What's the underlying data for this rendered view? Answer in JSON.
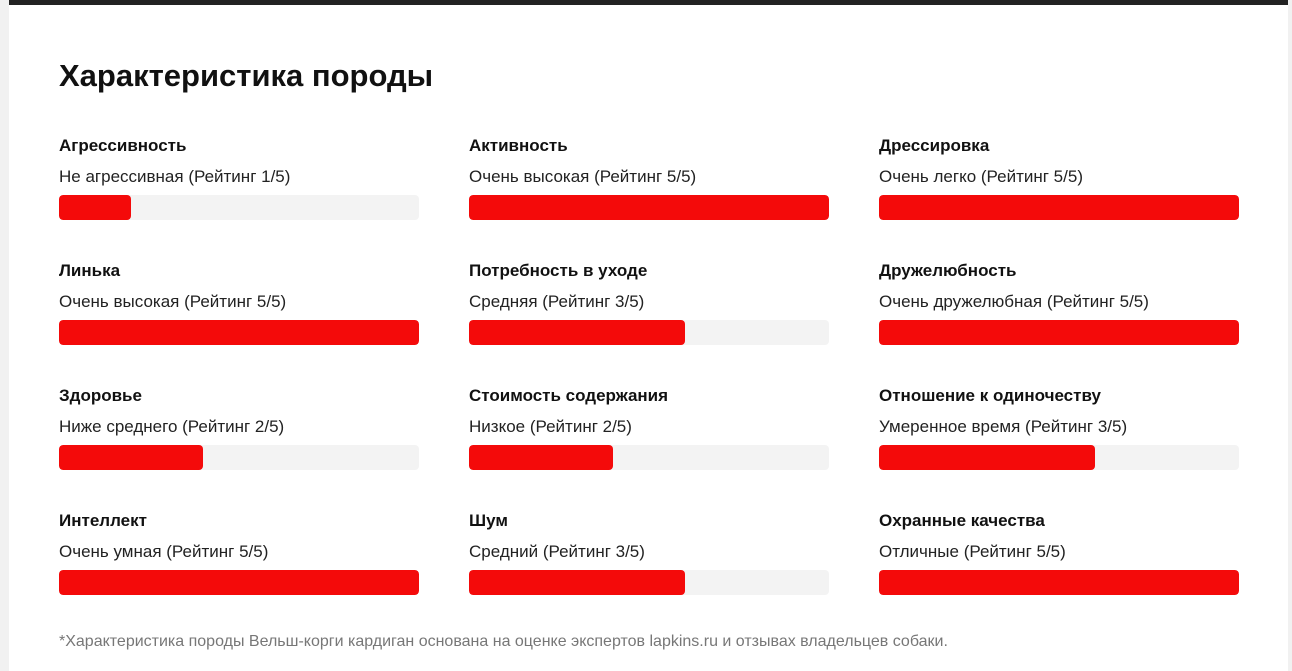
{
  "title": "Характеристика породы",
  "accent_color": "#f40a0a",
  "track_color": "#f3f3f3",
  "characteristics": [
    {
      "name": "Агрессивность",
      "value": "Не агрессивная (Рейтинг 1/5)",
      "rating": 1,
      "max": 5,
      "fill_fraction": 0.2
    },
    {
      "name": "Активность",
      "value": "Очень высокая (Рейтинг 5/5)",
      "rating": 5,
      "max": 5,
      "fill_fraction": 1.0
    },
    {
      "name": "Дрессировка",
      "value": "Очень легко (Рейтинг 5/5)",
      "rating": 5,
      "max": 5,
      "fill_fraction": 1.0
    },
    {
      "name": "Линька",
      "value": "Очень высокая (Рейтинг 5/5)",
      "rating": 5,
      "max": 5,
      "fill_fraction": 1.0
    },
    {
      "name": "Потребность в уходе",
      "value": "Средняя (Рейтинг 3/5)",
      "rating": 3,
      "max": 5,
      "fill_fraction": 0.6
    },
    {
      "name": "Дружелюбность",
      "value": "Очень дружелюбная (Рейтинг 5/5)",
      "rating": 5,
      "max": 5,
      "fill_fraction": 1.0
    },
    {
      "name": "Здоровье",
      "value": "Ниже среднего (Рейтинг 2/5)",
      "rating": 2,
      "max": 5,
      "fill_fraction": 0.4
    },
    {
      "name": "Стоимость содержания",
      "value": "Низкое (Рейтинг 2/5)",
      "rating": 2,
      "max": 5,
      "fill_fraction": 0.4
    },
    {
      "name": "Отношение к одиночеству",
      "value": "Умеренное время (Рейтинг 3/5)",
      "rating": 3,
      "max": 5,
      "fill_fraction": 0.6
    },
    {
      "name": "Интеллект",
      "value": "Очень умная (Рейтинг 5/5)",
      "rating": 5,
      "max": 5,
      "fill_fraction": 1.0
    },
    {
      "name": "Шум",
      "value": "Средний (Рейтинг 3/5)",
      "rating": 3,
      "max": 5,
      "fill_fraction": 0.6
    },
    {
      "name": "Охранные качества",
      "value": "Отличные (Рейтинг 5/5)",
      "rating": 5,
      "max": 5,
      "fill_fraction": 1.0
    }
  ],
  "footnote": "*Характеристика породы Вельш-корги кардиган основана на оценке экспертов lapkins.ru и отзывах владельцев собаки."
}
